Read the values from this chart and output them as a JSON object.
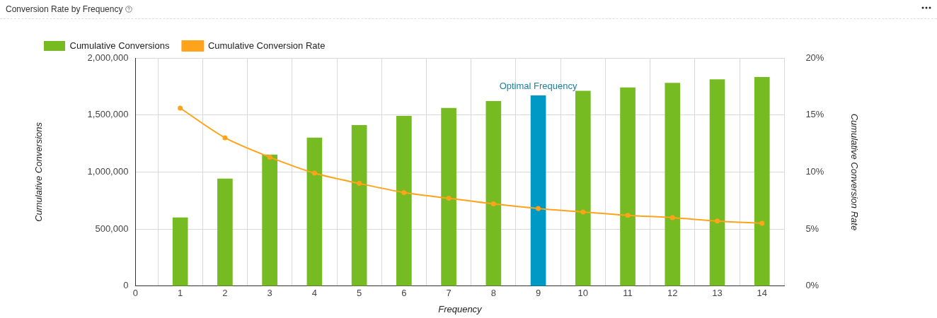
{
  "chart_data": {
    "type": "bar",
    "title": "Conversion Rate by Frequency",
    "xlabel": "Frequency",
    "ylabel": "Cumulative Conversions",
    "y2label": "Cumulative Conversion Rate",
    "x": [
      1,
      2,
      3,
      4,
      5,
      6,
      7,
      8,
      9,
      10,
      11,
      12,
      13,
      14
    ],
    "series": [
      {
        "name": "Cumulative Conversions",
        "colors": [
          "#77bb22",
          "#77bb22",
          "#77bb22",
          "#77bb22",
          "#77bb22",
          "#77bb22",
          "#77bb22",
          "#77bb22",
          "#0099c6",
          "#77bb22",
          "#77bb22",
          "#77bb22",
          "#77bb22",
          "#77bb22"
        ],
        "values": [
          600000,
          940000,
          1150000,
          1300000,
          1410000,
          1490000,
          1560000,
          1620000,
          1670000,
          1710000,
          1740000,
          1780000,
          1810000,
          1830000
        ]
      },
      {
        "name": "Cumulative Conversion Rate",
        "type": "line",
        "axis": "y2",
        "color": "#ffa31a",
        "marker": "circle",
        "values": [
          15.6,
          13.0,
          11.3,
          9.9,
          9.0,
          8.2,
          7.7,
          7.2,
          6.8,
          6.5,
          6.2,
          6.0,
          5.7,
          5.5
        ]
      }
    ],
    "xlim": [
      0,
      14.5
    ],
    "xticks": [
      0,
      1,
      2,
      3,
      4,
      5,
      6,
      7,
      8,
      9,
      10,
      11,
      12,
      13,
      14
    ],
    "ylim": [
      0,
      2000000
    ],
    "yticks": [
      0,
      {
        "value": 500000,
        "label": "500,000"
      },
      {
        "value": 1000000,
        "label": "1,000,000"
      },
      {
        "value": 1500000,
        "label": "1,500,000"
      },
      {
        "value": 2000000,
        "label": "2,000,000"
      }
    ],
    "y2lim": [
      0,
      20
    ],
    "y2ticks": [
      {
        "value": 0,
        "label": "0%"
      },
      {
        "value": 5,
        "label": "5%"
      },
      {
        "value": 10,
        "label": "10%"
      },
      {
        "value": 15,
        "label": "15%"
      },
      {
        "value": 20,
        "label": "20%"
      }
    ],
    "annotations": [
      {
        "text": "Optimal Frequency",
        "x": 9,
        "y": 1670000
      }
    ],
    "grid": true,
    "legend": "top left"
  }
}
